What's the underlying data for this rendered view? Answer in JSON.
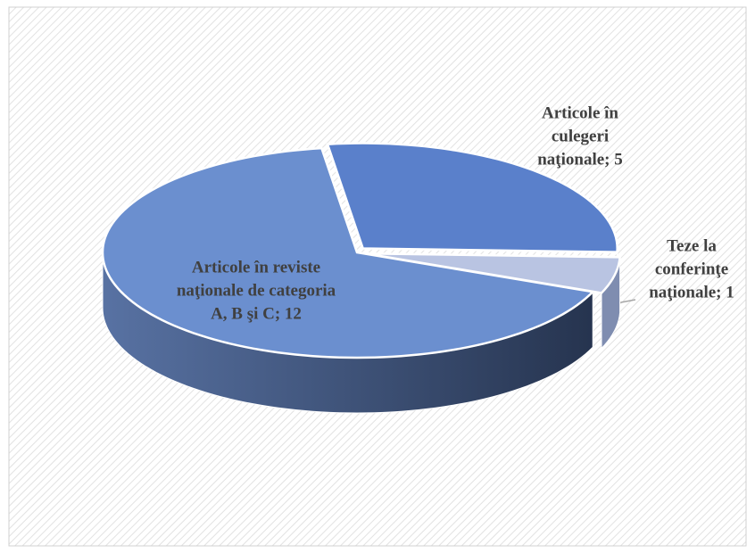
{
  "chart_data": {
    "type": "pie3d",
    "values": [
      5,
      1,
      12
    ],
    "value_labels": [
      [
        "Articole în",
        "culegeri",
        "naţionale; 5"
      ],
      [
        "Teze la",
        "conferinţe",
        "naţionale; 1"
      ],
      [
        "Articole în reviste",
        "naţionale de categoria",
        "A, B şi C; 12"
      ]
    ],
    "colors": [
      "#5a80cb",
      "#b9c4e2",
      "#6b8fcf"
    ]
  }
}
